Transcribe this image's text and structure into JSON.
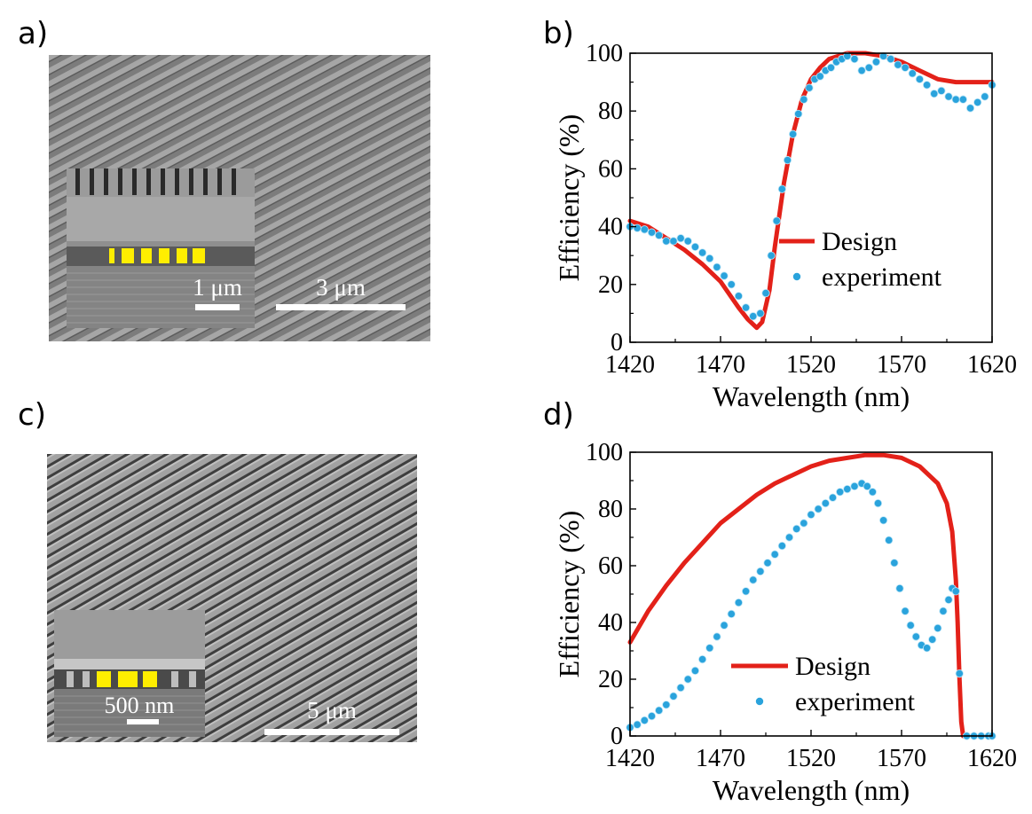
{
  "panels": {
    "a": {
      "label": "a)",
      "inset_scale_label": "1 μm",
      "scale_label": "3 μm"
    },
    "b": {
      "label": "b)"
    },
    "c": {
      "label": "c)",
      "inset_scale_label": "500 nm",
      "scale_label": "5 μm"
    },
    "d": {
      "label": "d)"
    }
  },
  "colors": {
    "design": "#e32119",
    "experiment": "#2aa3dc",
    "highlight": "#ffee00"
  },
  "chart_data": [
    {
      "panel": "b",
      "type": "line",
      "xlabel": "Wavelength (nm)",
      "ylabel": "Efficiency (%)",
      "xlim": [
        1420,
        1620
      ],
      "ylim": [
        0,
        100
      ],
      "xticks": [
        1420,
        1470,
        1520,
        1570,
        1620
      ],
      "yticks": [
        0,
        20,
        40,
        60,
        80,
        100
      ],
      "grid": false,
      "legend_placement": "center-right",
      "series": [
        {
          "name": "Design",
          "style": "line",
          "x": [
            1420,
            1430,
            1440,
            1450,
            1460,
            1470,
            1480,
            1485,
            1490,
            1493,
            1497,
            1500,
            1505,
            1510,
            1515,
            1520,
            1525,
            1530,
            1540,
            1550,
            1560,
            1570,
            1580,
            1590,
            1600,
            1610,
            1620
          ],
          "y": [
            42,
            40,
            36,
            32,
            27,
            21,
            12,
            8,
            5,
            7,
            18,
            33,
            55,
            72,
            84,
            91,
            95,
            98,
            100,
            100,
            99,
            97,
            94,
            91,
            90,
            90,
            90
          ]
        },
        {
          "name": "experiment",
          "style": "scatter",
          "x": [
            1420,
            1424,
            1428,
            1432,
            1436,
            1440,
            1444,
            1448,
            1452,
            1456,
            1460,
            1464,
            1468,
            1472,
            1476,
            1480,
            1484,
            1488,
            1492,
            1495,
            1498,
            1501,
            1504,
            1507,
            1510,
            1513,
            1516,
            1519,
            1522,
            1525,
            1528,
            1531,
            1534,
            1537,
            1540,
            1544,
            1548,
            1552,
            1556,
            1560,
            1564,
            1568,
            1572,
            1576,
            1580,
            1584,
            1588,
            1592,
            1596,
            1600,
            1604,
            1608,
            1612,
            1616,
            1620
          ],
          "y": [
            40,
            39.5,
            39,
            38,
            37,
            35,
            35,
            36,
            35,
            33,
            31,
            29,
            26,
            23,
            20,
            16,
            12,
            9,
            10,
            17,
            30,
            42,
            53,
            63,
            72,
            79,
            84,
            88,
            91,
            92,
            94,
            95,
            97,
            98,
            99,
            98,
            94,
            95,
            97,
            99,
            98,
            96,
            95,
            93,
            91,
            89,
            86,
            87,
            85,
            84,
            84,
            81,
            83,
            85,
            89
          ]
        }
      ]
    },
    {
      "panel": "d",
      "type": "line",
      "xlabel": "Wavelength (nm)",
      "ylabel": "Efficiency (%)",
      "xlim": [
        1420,
        1620
      ],
      "ylim": [
        0,
        100
      ],
      "xticks": [
        1420,
        1470,
        1520,
        1570,
        1620
      ],
      "yticks": [
        0,
        20,
        40,
        60,
        80,
        100
      ],
      "grid": false,
      "legend_placement": "bottom-center",
      "series": [
        {
          "name": "Design",
          "style": "line",
          "x": [
            1420,
            1430,
            1440,
            1450,
            1460,
            1470,
            1480,
            1490,
            1500,
            1510,
            1520,
            1530,
            1540,
            1550,
            1560,
            1570,
            1580,
            1590,
            1595,
            1598,
            1600,
            1601,
            1602,
            1603,
            1604
          ],
          "y": [
            33,
            44,
            53,
            61,
            68,
            75,
            80,
            85,
            89,
            92,
            95,
            97,
            98,
            99,
            99,
            98,
            95,
            89,
            82,
            72,
            55,
            40,
            20,
            5,
            0
          ]
        },
        {
          "name": "experiment",
          "style": "scatter",
          "x": [
            1420,
            1424,
            1428,
            1432,
            1436,
            1440,
            1444,
            1448,
            1452,
            1456,
            1460,
            1464,
            1468,
            1472,
            1476,
            1480,
            1484,
            1488,
            1492,
            1496,
            1500,
            1504,
            1508,
            1512,
            1516,
            1520,
            1524,
            1528,
            1532,
            1536,
            1540,
            1544,
            1548,
            1551,
            1554,
            1557,
            1560,
            1563,
            1566,
            1569,
            1572,
            1575,
            1578,
            1581,
            1584,
            1587,
            1590,
            1593,
            1596,
            1598,
            1600,
            1602,
            1606,
            1610,
            1614,
            1618,
            1620
          ],
          "y": [
            3,
            4,
            5.5,
            7,
            9,
            11,
            14,
            17,
            20,
            23,
            27,
            31,
            35,
            39,
            43,
            47,
            51,
            55,
            58,
            61,
            64,
            67,
            70,
            73,
            75,
            78,
            80,
            82,
            84,
            86,
            87,
            88,
            89,
            88,
            86,
            82,
            76,
            69,
            61,
            52,
            44,
            39,
            35,
            32,
            31,
            34,
            38,
            44,
            48,
            52,
            51,
            22,
            0,
            0,
            0,
            0,
            0
          ]
        }
      ]
    }
  ]
}
